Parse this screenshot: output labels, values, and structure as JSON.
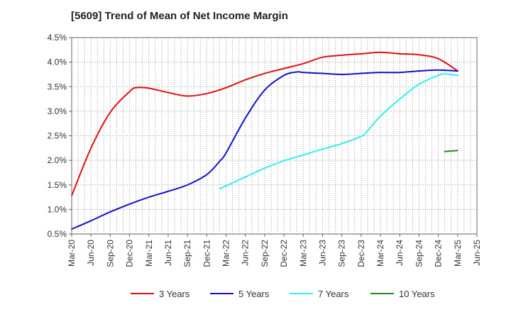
{
  "chart_data": {
    "type": "line",
    "title": "[5609]  Trend of Mean of Net Income Margin",
    "xlabel": "",
    "ylabel": "",
    "y_unit": "%",
    "ylim": [
      0.5,
      4.5
    ],
    "yticks": [
      "0.5%",
      "1.0%",
      "1.5%",
      "2.0%",
      "2.5%",
      "3.0%",
      "3.5%",
      "4.0%",
      "4.5%"
    ],
    "xlim": [
      "Mar-20",
      "Jun-25"
    ],
    "xticks": [
      "Mar-20",
      "Jun-20",
      "Sep-20",
      "Dec-20",
      "Mar-21",
      "Jun-21",
      "Sep-21",
      "Dec-21",
      "Mar-22",
      "Jun-22",
      "Sep-22",
      "Dec-22",
      "Mar-23",
      "Jun-23",
      "Sep-23",
      "Dec-23",
      "Mar-24",
      "Jun-24",
      "Sep-24",
      "Dec-24",
      "Mar-25",
      "Jun-25"
    ],
    "grid": true,
    "legend_position": "bottom",
    "series": [
      {
        "name": "3 Years",
        "color": "#dd1111",
        "x": [
          "Mar-20",
          "Jun-20",
          "Sep-20",
          "Dec-20",
          "Jan-21",
          "Mar-21",
          "Jun-21",
          "Sep-21",
          "Dec-21",
          "Mar-22",
          "Jun-22",
          "Sep-22",
          "Dec-22",
          "Mar-23",
          "Jun-23",
          "Sep-23",
          "Dec-23",
          "Mar-24",
          "Jun-24",
          "Sep-24",
          "Dec-24",
          "Mar-25"
        ],
        "values": [
          1.28,
          2.25,
          2.98,
          3.4,
          3.48,
          3.47,
          3.38,
          3.31,
          3.36,
          3.48,
          3.64,
          3.77,
          3.87,
          3.97,
          4.1,
          4.14,
          4.17,
          4.2,
          4.17,
          4.15,
          4.07,
          3.82
        ]
      },
      {
        "name": "5 Years",
        "color": "#1111cc",
        "x": [
          "Mar-20",
          "Jun-20",
          "Sep-20",
          "Dec-20",
          "Mar-21",
          "Jun-21",
          "Sep-21",
          "Dec-21",
          "Feb-22",
          "Mar-22",
          "Jun-22",
          "Sep-22",
          "Dec-22",
          "Feb-23",
          "Mar-23",
          "Jun-23",
          "Sep-23",
          "Dec-23",
          "Mar-24",
          "Jun-24",
          "Sep-24",
          "Dec-24",
          "Mar-25"
        ],
        "values": [
          0.6,
          0.77,
          0.95,
          1.11,
          1.25,
          1.37,
          1.5,
          1.71,
          1.98,
          2.15,
          2.86,
          3.43,
          3.73,
          3.8,
          3.79,
          3.77,
          3.75,
          3.77,
          3.79,
          3.79,
          3.82,
          3.84,
          3.82
        ]
      },
      {
        "name": "7 Years",
        "color": "#33eeee",
        "x": [
          "Feb-22",
          "Jun-22",
          "Sep-22",
          "Dec-22",
          "Mar-23",
          "Jun-23",
          "Sep-23",
          "Dec-23",
          "Jan-24",
          "Mar-24",
          "Jun-24",
          "Sep-24",
          "Dec-24",
          "Jan-25",
          "Mar-25"
        ],
        "values": [
          1.42,
          1.66,
          1.84,
          1.99,
          2.11,
          2.23,
          2.34,
          2.49,
          2.6,
          2.9,
          3.25,
          3.55,
          3.73,
          3.76,
          3.73
        ]
      },
      {
        "name": "10 Years",
        "color": "#228822",
        "x": [
          "Jan-25",
          "Mar-25"
        ],
        "values": [
          2.18,
          2.2
        ]
      }
    ]
  }
}
